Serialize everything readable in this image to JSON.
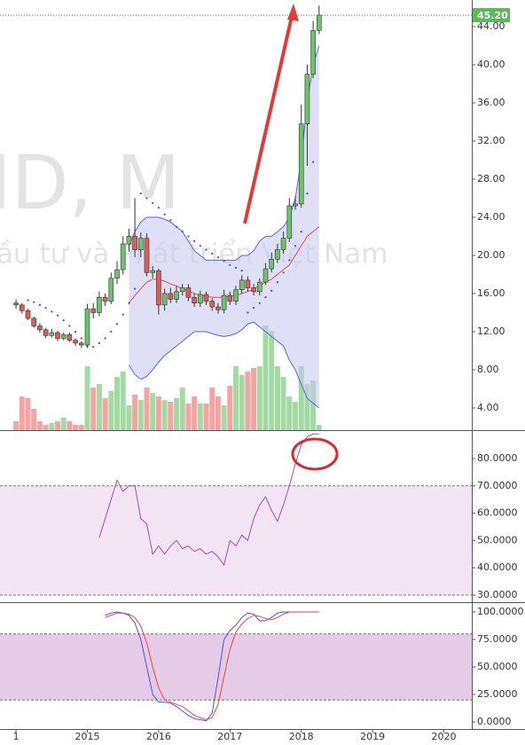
{
  "chart_data": [
    {
      "type": "candlestick",
      "watermark": "ID, M",
      "watermark_subtitle": "ầu tư và Phát triển Việt Nam",
      "last_price": {
        "value": 45.2,
        "label": "45.20"
      },
      "last_price_color": "#5cb85c",
      "ylim": [
        1.67,
        46.79
      ],
      "yticks": [
        {
          "value": 4,
          "label": "4.00"
        },
        {
          "value": 8,
          "label": "8.00"
        },
        {
          "value": 12,
          "label": "12.00"
        },
        {
          "value": 16,
          "label": "16.00"
        },
        {
          "value": 20,
          "label": "20.00"
        },
        {
          "value": 24,
          "label": "24.00"
        },
        {
          "value": 28,
          "label": "28.00"
        },
        {
          "value": 32,
          "label": "32.00"
        },
        {
          "value": 36,
          "label": "36.00"
        },
        {
          "value": 40,
          "label": "40.00"
        },
        {
          "value": 44,
          "label": "44.00"
        }
      ],
      "up_color": "#6cc36c",
      "down_color": "#e05c5c",
      "volume_up_color": "#a3d9a3",
      "volume_down_color": "#f5a3a3",
      "open": [
        15.0,
        14.8,
        14.2,
        13.4,
        12.6,
        12.2,
        11.6,
        11.9,
        11.3,
        11.7,
        11.1,
        10.8,
        10.6,
        14.4,
        14.0,
        15.6,
        15.2,
        17.6,
        18.5,
        21.2,
        22.0,
        20.6,
        21.8,
        18.2,
        18.4,
        14.8,
        16.0,
        15.4,
        16.2,
        16.6,
        15.6,
        15.0,
        15.9,
        15.2,
        14.6,
        14.3,
        15.8,
        15.2,
        16.4,
        17.4,
        16.6,
        16.2,
        17.2,
        18.6,
        19.6,
        20.6,
        21.8,
        25.2,
        25.4,
        33.8,
        39.0,
        43.6
      ],
      "high": [
        15.4,
        15.0,
        14.4,
        13.6,
        12.9,
        12.4,
        12.3,
        12.1,
        11.9,
        11.9,
        11.3,
        11.0,
        14.9,
        15.0,
        16.2,
        16.0,
        18.2,
        19.4,
        22.0,
        22.8,
        26.0,
        22.4,
        22.3,
        18.9,
        18.6,
        16.5,
        16.6,
        16.8,
        17.0,
        17.0,
        16.0,
        16.3,
        16.2,
        15.5,
        15.0,
        16.4,
        16.2,
        16.8,
        17.9,
        17.8,
        17.0,
        17.6,
        19.2,
        20.3,
        21.2,
        22.5,
        26.0,
        26.2,
        35.8,
        40.0,
        44.6,
        46.2
      ],
      "low": [
        14.4,
        13.9,
        13.2,
        12.4,
        11.9,
        11.3,
        11.4,
        11.0,
        11.1,
        10.9,
        10.5,
        10.3,
        10.3,
        13.4,
        13.6,
        14.7,
        14.9,
        17.0,
        18.0,
        20.4,
        19.8,
        19.8,
        17.8,
        17.6,
        13.8,
        14.2,
        15.0,
        15.0,
        15.8,
        15.2,
        14.6,
        14.6,
        14.8,
        14.2,
        13.9,
        13.9,
        14.8,
        14.8,
        16.0,
        16.2,
        15.8,
        15.8,
        16.9,
        18.2,
        19.2,
        20.2,
        21.4,
        24.8,
        25.0,
        29.4,
        38.6,
        43.2
      ],
      "close": [
        14.8,
        14.2,
        13.4,
        12.6,
        12.2,
        11.6,
        11.9,
        11.3,
        11.7,
        11.1,
        10.8,
        10.6,
        14.4,
        14.0,
        15.6,
        15.2,
        17.6,
        18.5,
        21.2,
        22.0,
        20.6,
        21.8,
        18.2,
        18.4,
        14.8,
        16.0,
        15.4,
        16.2,
        16.6,
        15.6,
        15.0,
        15.9,
        15.2,
        14.6,
        14.3,
        15.8,
        15.2,
        16.4,
        17.4,
        16.6,
        16.2,
        17.2,
        18.6,
        19.6,
        20.6,
        21.8,
        25.2,
        25.4,
        33.8,
        39.0,
        43.6,
        45.2
      ],
      "volume": [
        10,
        38,
        36,
        24,
        10,
        6,
        8,
        10,
        14,
        10,
        6,
        6,
        72,
        48,
        52,
        36,
        44,
        60,
        66,
        28,
        40,
        34,
        48,
        42,
        38,
        34,
        32,
        36,
        48,
        30,
        38,
        30,
        30,
        48,
        38,
        28,
        50,
        72,
        62,
        66,
        70,
        72,
        118,
        112,
        72,
        60,
        38,
        32,
        72,
        52,
        56,
        6
      ],
      "volume_ylim": [
        0,
        485
      ],
      "bollinger_color": "#5566dd",
      "bollinger_basis_color": "#e84c4c",
      "bollinger_fill": "#c9c9ee",
      "bollinger_upper": [
        null,
        null,
        null,
        null,
        null,
        null,
        null,
        null,
        null,
        null,
        null,
        null,
        null,
        null,
        null,
        null,
        null,
        null,
        null,
        21,
        22.5,
        23.5,
        24,
        24,
        24,
        23.8,
        23.5,
        23,
        22.5,
        21.5,
        20.5,
        20,
        19.5,
        19.5,
        19.5,
        19.5,
        19.5,
        19.5,
        20,
        20,
        20.5,
        21.5,
        22,
        22,
        22.5,
        23,
        24,
        26,
        30,
        36,
        40,
        42
      ],
      "bollinger_basis": [
        null,
        null,
        null,
        null,
        null,
        null,
        null,
        null,
        null,
        null,
        null,
        null,
        null,
        null,
        null,
        null,
        null,
        null,
        null,
        15,
        15.8,
        16.5,
        17.2,
        17.5,
        17.5,
        17.3,
        17,
        16.8,
        16.5,
        16.3,
        16,
        15.8,
        15.7,
        15.6,
        15.6,
        15.6,
        15.7,
        15.8,
        16,
        16.2,
        16.5,
        16.8,
        17.2,
        17.5,
        18,
        18.5,
        19,
        20,
        21,
        22,
        22.5,
        23
      ],
      "bollinger_lower": [
        null,
        null,
        null,
        null,
        null,
        null,
        null,
        null,
        null,
        null,
        null,
        null,
        null,
        null,
        null,
        null,
        null,
        null,
        null,
        8.5,
        7.5,
        7,
        7.3,
        8,
        8.8,
        9.5,
        10,
        10.5,
        11,
        11.5,
        12,
        12,
        12,
        11.8,
        11.6,
        11.5,
        11.6,
        11.8,
        12.2,
        12.8,
        13,
        12.5,
        12,
        11.5,
        11,
        10.5,
        9,
        8,
        6.5,
        5,
        4.5,
        4
      ],
      "sar_color": "#3355dd",
      "sar": [
        null,
        null,
        15.3,
        15.1,
        14.8,
        14.5,
        14.1,
        13.7,
        13.2,
        12.6,
        12.0,
        11.3,
        10.5,
        10.4,
        10.8,
        11.3,
        12.0,
        12.8,
        13.8,
        15.0,
        16.5,
        26.5,
        26.0,
        25.5,
        25.0,
        24.3,
        23.7,
        23.0,
        22.5,
        22.0,
        21.5,
        21.0,
        20.6,
        20.2,
        19.8,
        19.4,
        19.0,
        18.7,
        18.4,
        14.0,
        14.5,
        15.0,
        15.6,
        16.3,
        17.2,
        18.2,
        19.5,
        21.0,
        22.5,
        26.5,
        29.8,
        null
      ]
    },
    {
      "type": "line",
      "color": "#9b4fb5",
      "band": [
        30,
        70
      ],
      "band_color": "#f2e4f2",
      "ylim": [
        27.4,
        89.74
      ],
      "yticks": [
        {
          "value": 30,
          "label": "30.0000"
        },
        {
          "value": 40,
          "label": "40.0000"
        },
        {
          "value": 50,
          "label": "50.0000"
        },
        {
          "value": 60,
          "label": "60.0000"
        },
        {
          "value": 70,
          "label": "70.0000"
        },
        {
          "value": 80,
          "label": "80.0000"
        }
      ],
      "series": [
        {
          "color": "#9b4fb5",
          "values": [
            null,
            null,
            null,
            null,
            null,
            null,
            null,
            null,
            null,
            null,
            null,
            null,
            null,
            null,
            51,
            58,
            65,
            72,
            68,
            70,
            70,
            58,
            56,
            45,
            48,
            45,
            48,
            50,
            47,
            48,
            46,
            47,
            45,
            46,
            44,
            41,
            50,
            48,
            52,
            50,
            58,
            63,
            66,
            61,
            57,
            63,
            70,
            78,
            85,
            88,
            89,
            89
          ]
        }
      ]
    },
    {
      "type": "line",
      "band": [
        20,
        80
      ],
      "band_color": "#e6cbe6",
      "ylim": [
        -6.45,
        107.26
      ],
      "yticks": [
        {
          "value": 0,
          "label": "0.0000"
        },
        {
          "value": 25,
          "label": "25.0000"
        },
        {
          "value": 50,
          "label": "50.0000"
        },
        {
          "value": 75,
          "label": "75.0000"
        },
        {
          "value": 100,
          "label": "100.0000"
        }
      ],
      "series": [
        {
          "color": "#4455ee",
          "values": [
            null,
            null,
            null,
            null,
            null,
            null,
            null,
            null,
            null,
            null,
            null,
            null,
            null,
            null,
            null,
            97,
            99,
            100,
            99,
            97,
            90,
            75,
            50,
            25,
            18,
            18,
            17,
            14,
            10,
            6,
            3,
            2,
            1,
            8,
            40,
            75,
            83,
            88,
            95,
            99,
            98,
            92,
            92,
            95,
            99,
            100,
            100,
            100,
            100,
            100,
            100,
            100
          ]
        },
        {
          "color": "#f04040",
          "values": [
            null,
            null,
            null,
            null,
            null,
            null,
            null,
            null,
            null,
            null,
            null,
            null,
            null,
            null,
            null,
            95,
            97,
            99,
            99,
            98,
            95,
            87,
            72,
            50,
            31,
            20,
            18,
            16,
            14,
            10,
            6,
            4,
            2,
            4,
            16,
            41,
            66,
            82,
            89,
            94,
            97,
            96,
            94,
            93,
            95,
            98,
            100,
            100,
            100,
            100,
            100,
            100
          ]
        }
      ],
      "xlim": [
        -2.7,
        76.7
      ],
      "xticks": [
        {
          "value": 0,
          "label": "1"
        },
        {
          "value": 12,
          "label": "2015"
        },
        {
          "value": 24,
          "label": "2016"
        },
        {
          "value": 36,
          "label": "2017"
        },
        {
          "value": 48,
          "label": "2018"
        },
        {
          "value": 60,
          "label": "2019"
        },
        {
          "value": 72,
          "label": "2020"
        }
      ]
    }
  ]
}
